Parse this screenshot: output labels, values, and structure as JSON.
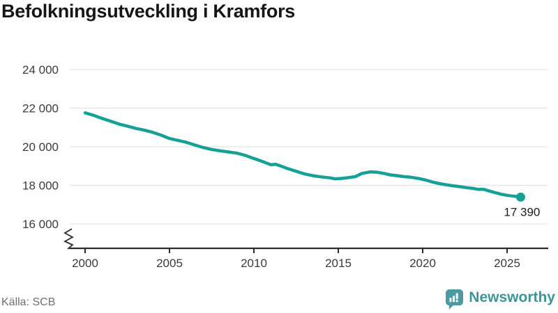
{
  "header": {
    "title": "Befolkningsutveckling i Kramfors"
  },
  "footer": {
    "source": "Källa: SCB",
    "brand": "Newsworthy"
  },
  "colors": {
    "line": "#16a096",
    "grid": "#e3e3e3",
    "axis": "#2b2b2b",
    "tick_text": "#3a3a3a",
    "title": "#161616",
    "muted": "#707070",
    "brand_text": "#3f9499",
    "brand_icon": "#4d9ba1",
    "end_label_text": "#1c1c1c"
  },
  "chart_data": {
    "type": "line",
    "title": "Befolkningsutveckling i Kramfors",
    "xlabel": "",
    "ylabel": "",
    "grid": "horizontal",
    "legend_position": "none",
    "axis_break": true,
    "xlim": [
      1999.1,
      2027.4
    ],
    "ylim": [
      16000,
      24000
    ],
    "x_ticks": [
      2000,
      2005,
      2010,
      2015,
      2020,
      2025
    ],
    "y_ticks": [
      {
        "value": 16000,
        "label": "16 000"
      },
      {
        "value": 18000,
        "label": "18 000"
      },
      {
        "value": 20000,
        "label": "20 000"
      },
      {
        "value": 22000,
        "label": "22 000"
      },
      {
        "value": 24000,
        "label": "24 000"
      }
    ],
    "end_label": "17 390",
    "end_value": 17390,
    "series": [
      {
        "name": "Befolkning i Kramfors",
        "color": "#16a096",
        "points": [
          [
            2000.0,
            21760
          ],
          [
            2000.5,
            21630
          ],
          [
            2001.0,
            21470
          ],
          [
            2001.5,
            21330
          ],
          [
            2002.0,
            21180
          ],
          [
            2002.5,
            21070
          ],
          [
            2003.0,
            20950
          ],
          [
            2003.5,
            20860
          ],
          [
            2004.0,
            20750
          ],
          [
            2004.5,
            20600
          ],
          [
            2005.0,
            20430
          ],
          [
            2005.5,
            20330
          ],
          [
            2006.0,
            20230
          ],
          [
            2006.5,
            20090
          ],
          [
            2007.0,
            19960
          ],
          [
            2007.5,
            19860
          ],
          [
            2008.0,
            19790
          ],
          [
            2008.5,
            19730
          ],
          [
            2009.0,
            19670
          ],
          [
            2009.5,
            19550
          ],
          [
            2010.0,
            19390
          ],
          [
            2010.5,
            19240
          ],
          [
            2011.0,
            19070
          ],
          [
            2011.3,
            19090
          ],
          [
            2011.6,
            19000
          ],
          [
            2012.0,
            18870
          ],
          [
            2012.5,
            18730
          ],
          [
            2013.0,
            18590
          ],
          [
            2013.5,
            18500
          ],
          [
            2014.0,
            18440
          ],
          [
            2014.5,
            18390
          ],
          [
            2014.8,
            18340
          ],
          [
            2015.2,
            18360
          ],
          [
            2015.6,
            18400
          ],
          [
            2016.0,
            18450
          ],
          [
            2016.4,
            18620
          ],
          [
            2016.9,
            18700
          ],
          [
            2017.3,
            18680
          ],
          [
            2017.7,
            18620
          ],
          [
            2018.1,
            18540
          ],
          [
            2018.5,
            18500
          ],
          [
            2018.9,
            18450
          ],
          [
            2019.3,
            18420
          ],
          [
            2019.8,
            18350
          ],
          [
            2020.2,
            18270
          ],
          [
            2020.6,
            18170
          ],
          [
            2021.0,
            18090
          ],
          [
            2021.4,
            18030
          ],
          [
            2021.8,
            17980
          ],
          [
            2022.2,
            17930
          ],
          [
            2022.6,
            17880
          ],
          [
            2023.0,
            17840
          ],
          [
            2023.3,
            17790
          ],
          [
            2023.6,
            17800
          ],
          [
            2023.9,
            17720
          ],
          [
            2024.3,
            17620
          ],
          [
            2024.7,
            17530
          ],
          [
            2025.1,
            17470
          ],
          [
            2025.5,
            17430
          ],
          [
            2025.8,
            17390
          ]
        ]
      }
    ]
  }
}
